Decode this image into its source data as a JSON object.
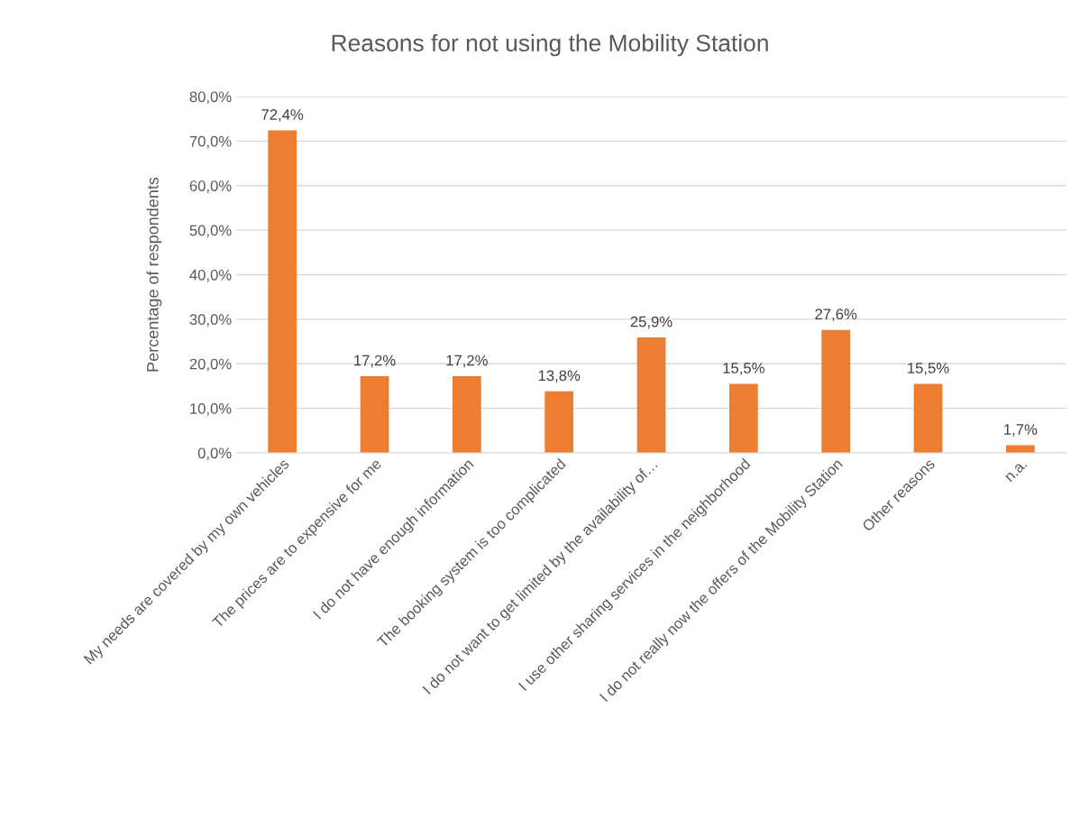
{
  "chart_data": {
    "type": "bar",
    "title": "Reasons for not using the Mobility Station",
    "ylabel": "Percentage of respondents",
    "categories": [
      "My needs are covered by my own vehicles",
      "The prices are to expensive for me",
      "I do not have enough information",
      "The booking system is too complicated",
      "I do not want to get limited by the availability of…",
      "I use other sharing services in the neighborhood",
      "I do not really now the offers of the Mobility Station",
      "Other reasons",
      "n.a."
    ],
    "values": [
      72.4,
      17.2,
      17.2,
      13.8,
      25.9,
      15.5,
      27.6,
      15.5,
      1.7
    ],
    "value_labels": [
      "72,4%",
      "17,2%",
      "17,2%",
      "13,8%",
      "25,9%",
      "15,5%",
      "27,6%",
      "15,5%",
      "1,7%"
    ],
    "color": "#ed7d31",
    "ylim": [
      0,
      80
    ],
    "yticks": [
      {
        "value": 0,
        "label": "0,0%"
      },
      {
        "value": 10,
        "label": "10,0%"
      },
      {
        "value": 20,
        "label": "20,0%"
      },
      {
        "value": 30,
        "label": "30,0%"
      },
      {
        "value": 40,
        "label": "40,0%"
      },
      {
        "value": 50,
        "label": "50,0%"
      },
      {
        "value": 60,
        "label": "60,0%"
      },
      {
        "value": 70,
        "label": "70,0%"
      },
      {
        "value": 80,
        "label": "80,0%"
      }
    ],
    "grid": "y"
  }
}
